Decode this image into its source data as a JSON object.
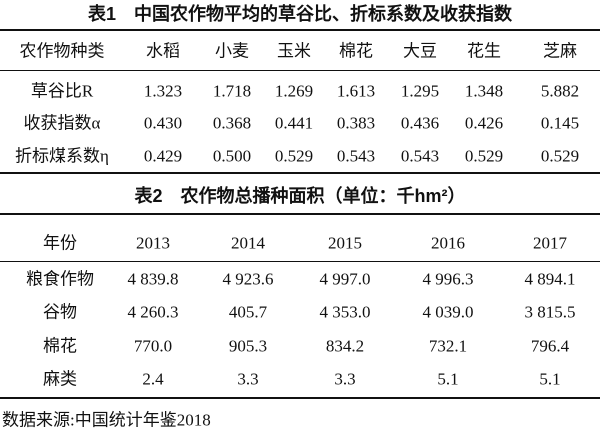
{
  "table1": {
    "title": "表1　中国农作物平均的草谷比、折标系数及收获指数",
    "header": [
      "农作物种类",
      "水稻",
      "小麦",
      "玉米",
      "棉花",
      "大豆",
      "花生",
      "芝麻"
    ],
    "rows": [
      [
        "草谷比R",
        "1.323",
        "1.718",
        "1.269",
        "1.613",
        "1.295",
        "1.348",
        "5.882"
      ],
      [
        "收获指数α",
        "0.430",
        "0.368",
        "0.441",
        "0.383",
        "0.436",
        "0.426",
        "0.145"
      ],
      [
        "折标煤系数η",
        "0.429",
        "0.500",
        "0.529",
        "0.543",
        "0.543",
        "0.529",
        "0.529"
      ]
    ]
  },
  "table2": {
    "title": "表2　农作物总播种面积（单位：千hm²）",
    "header": [
      "年份",
      "2013",
      "2014",
      "2015",
      "2016",
      "2017"
    ],
    "rows": [
      [
        "粮食作物",
        "4 839.8",
        "4 923.6",
        "4 997.0",
        "4 996.3",
        "4 894.1"
      ],
      [
        "谷物",
        "4 260.3",
        "405.7",
        "4 353.0",
        "4 039.0",
        "3 815.5"
      ],
      [
        "棉花",
        "770.0",
        "905.3",
        "834.2",
        "732.1",
        "796.4"
      ],
      [
        "麻类",
        "2.4",
        "3.3",
        "3.3",
        "5.1",
        "5.1"
      ]
    ]
  },
  "source": "数据来源:中国统计年鉴2018"
}
